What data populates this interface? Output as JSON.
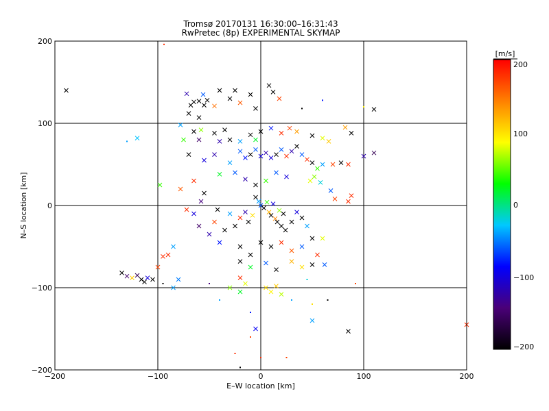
{
  "chart_data": {
    "type": "scatter",
    "title": "Tromsø 20170131 16:30:00–16:31:43",
    "subtitle": "RwPretec (8p) EXPERIMENTAL SKYMAP",
    "xlabel": "E–W location [km]",
    "ylabel": "N–S location [km]",
    "xlim": [
      -200,
      200
    ],
    "ylim": [
      -200,
      200
    ],
    "xticks": [
      "−200",
      "−100",
      "0",
      "100",
      "200"
    ],
    "yticks": [
      "−200",
      "−100",
      "0",
      "100",
      "200"
    ],
    "grid": true,
    "colorbar": {
      "label": "[m/s]",
      "range": [
        -200,
        200
      ],
      "ticks": [
        "200",
        "100",
        "0",
        "−100",
        "−200"
      ],
      "colormap": [
        "#000000",
        "#4a0078",
        "#0000ff",
        "#00c8ff",
        "#00ff00",
        "#ffff00",
        "#ff8000",
        "#ff0000"
      ]
    },
    "points": [
      {
        "x": -189,
        "y": 140,
        "v": -200,
        "m": "x"
      },
      {
        "x": -94,
        "y": 196,
        "v": 180,
        "m": "d"
      },
      {
        "x": -72,
        "y": 136,
        "v": -120,
        "m": "x"
      },
      {
        "x": -68,
        "y": 122,
        "v": -200,
        "m": "x"
      },
      {
        "x": -65,
        "y": 126,
        "v": -200,
        "m": "x"
      },
      {
        "x": -60,
        "y": 127,
        "v": -200,
        "m": "x"
      },
      {
        "x": -55,
        "y": 122,
        "v": -200,
        "m": "x"
      },
      {
        "x": -52,
        "y": 128,
        "v": -200,
        "m": "x"
      },
      {
        "x": -70,
        "y": 112,
        "v": -200,
        "m": "x"
      },
      {
        "x": -60,
        "y": 107,
        "v": -200,
        "m": "x"
      },
      {
        "x": -56,
        "y": 135,
        "v": -60,
        "m": "x"
      },
      {
        "x": -45,
        "y": 121,
        "v": 150,
        "m": "x"
      },
      {
        "x": -40,
        "y": 140,
        "v": -200,
        "m": "x"
      },
      {
        "x": -30,
        "y": 130,
        "v": -200,
        "m": "x"
      },
      {
        "x": -25,
        "y": 140,
        "v": -200,
        "m": "x"
      },
      {
        "x": -20,
        "y": 125,
        "v": 160,
        "m": "x"
      },
      {
        "x": -10,
        "y": 135,
        "v": -200,
        "m": "x"
      },
      {
        "x": -5,
        "y": 118,
        "v": -200,
        "m": "x"
      },
      {
        "x": 8,
        "y": 146,
        "v": -200,
        "m": "x"
      },
      {
        "x": 12,
        "y": 138,
        "v": -200,
        "m": "x"
      },
      {
        "x": 18,
        "y": 130,
        "v": 170,
        "m": "x"
      },
      {
        "x": 40,
        "y": 118,
        "v": -200,
        "m": "d"
      },
      {
        "x": 60,
        "y": 128,
        "v": -80,
        "m": "d"
      },
      {
        "x": 110,
        "y": 117,
        "v": -200,
        "m": "x"
      },
      {
        "x": 100,
        "y": 120,
        "v": 90,
        "m": "d"
      },
      {
        "x": -120,
        "y": 82,
        "v": -30,
        "m": "x"
      },
      {
        "x": -130,
        "y": 78,
        "v": -40,
        "m": "d"
      },
      {
        "x": -78,
        "y": 98,
        "v": -40,
        "m": "x"
      },
      {
        "x": -65,
        "y": 90,
        "v": -200,
        "m": "x"
      },
      {
        "x": -60,
        "y": 80,
        "v": -150,
        "m": "x"
      },
      {
        "x": -58,
        "y": 92,
        "v": 60,
        "m": "x"
      },
      {
        "x": -75,
        "y": 80,
        "v": 40,
        "m": "x"
      },
      {
        "x": -45,
        "y": 88,
        "v": -200,
        "m": "x"
      },
      {
        "x": -40,
        "y": 78,
        "v": -120,
        "m": "x"
      },
      {
        "x": -35,
        "y": 92,
        "v": -200,
        "m": "x"
      },
      {
        "x": -30,
        "y": 80,
        "v": -200,
        "m": "x"
      },
      {
        "x": -20,
        "y": 78,
        "v": -40,
        "m": "x"
      },
      {
        "x": -10,
        "y": 86,
        "v": -200,
        "m": "x"
      },
      {
        "x": -5,
        "y": 80,
        "v": 20,
        "m": "x"
      },
      {
        "x": 0,
        "y": 90,
        "v": -200,
        "m": "x"
      },
      {
        "x": 10,
        "y": 94,
        "v": -80,
        "m": "x"
      },
      {
        "x": 20,
        "y": 88,
        "v": 180,
        "m": "x"
      },
      {
        "x": 28,
        "y": 94,
        "v": 170,
        "m": "x"
      },
      {
        "x": 35,
        "y": 90,
        "v": 130,
        "m": "x"
      },
      {
        "x": 50,
        "y": 85,
        "v": -200,
        "m": "x"
      },
      {
        "x": 60,
        "y": 82,
        "v": 80,
        "m": "x"
      },
      {
        "x": 66,
        "y": 78,
        "v": 110,
        "m": "x"
      },
      {
        "x": 82,
        "y": 95,
        "v": 130,
        "m": "x"
      },
      {
        "x": 88,
        "y": 88,
        "v": -200,
        "m": "x"
      },
      {
        "x": -20,
        "y": 66,
        "v": -60,
        "m": "x"
      },
      {
        "x": -15,
        "y": 58,
        "v": -80,
        "m": "x"
      },
      {
        "x": -10,
        "y": 62,
        "v": -200,
        "m": "x"
      },
      {
        "x": -5,
        "y": 68,
        "v": -60,
        "m": "x"
      },
      {
        "x": 0,
        "y": 60,
        "v": -100,
        "m": "x"
      },
      {
        "x": 5,
        "y": 64,
        "v": -120,
        "m": "x"
      },
      {
        "x": 10,
        "y": 58,
        "v": -100,
        "m": "x"
      },
      {
        "x": 15,
        "y": 62,
        "v": -200,
        "m": "x"
      },
      {
        "x": 20,
        "y": 68,
        "v": -60,
        "m": "x"
      },
      {
        "x": 25,
        "y": 60,
        "v": 180,
        "m": "x"
      },
      {
        "x": 30,
        "y": 66,
        "v": -120,
        "m": "x"
      },
      {
        "x": 35,
        "y": 72,
        "v": -200,
        "m": "x"
      },
      {
        "x": 40,
        "y": 62,
        "v": -60,
        "m": "x"
      },
      {
        "x": 45,
        "y": 56,
        "v": 180,
        "m": "x"
      },
      {
        "x": 50,
        "y": 52,
        "v": -200,
        "m": "x"
      },
      {
        "x": 55,
        "y": 45,
        "v": 40,
        "m": "x"
      },
      {
        "x": 60,
        "y": 50,
        "v": -40,
        "m": "x"
      },
      {
        "x": 70,
        "y": 50,
        "v": 170,
        "m": "x"
      },
      {
        "x": 78,
        "y": 52,
        "v": -200,
        "m": "x"
      },
      {
        "x": 85,
        "y": 50,
        "v": 180,
        "m": "x"
      },
      {
        "x": 100,
        "y": 60,
        "v": -120,
        "m": "x"
      },
      {
        "x": 110,
        "y": 64,
        "v": -160,
        "m": "x"
      },
      {
        "x": -70,
        "y": 62,
        "v": -200,
        "m": "x"
      },
      {
        "x": -55,
        "y": 55,
        "v": -100,
        "m": "x"
      },
      {
        "x": -45,
        "y": 62,
        "v": -120,
        "m": "x"
      },
      {
        "x": -30,
        "y": 52,
        "v": -40,
        "m": "x"
      },
      {
        "x": -40,
        "y": 38,
        "v": 20,
        "m": "x"
      },
      {
        "x": -25,
        "y": 40,
        "v": -60,
        "m": "x"
      },
      {
        "x": -15,
        "y": 32,
        "v": -120,
        "m": "x"
      },
      {
        "x": -5,
        "y": 25,
        "v": -200,
        "m": "x"
      },
      {
        "x": 5,
        "y": 30,
        "v": 40,
        "m": "x"
      },
      {
        "x": 15,
        "y": 40,
        "v": -60,
        "m": "x"
      },
      {
        "x": 25,
        "y": 35,
        "v": -100,
        "m": "x"
      },
      {
        "x": -65,
        "y": 30,
        "v": 180,
        "m": "x"
      },
      {
        "x": -78,
        "y": 20,
        "v": 160,
        "m": "x"
      },
      {
        "x": -98,
        "y": 25,
        "v": 40,
        "m": "x"
      },
      {
        "x": -55,
        "y": 15,
        "v": -200,
        "m": "x"
      },
      {
        "x": 52,
        "y": 35,
        "v": 60,
        "m": "x"
      },
      {
        "x": 48,
        "y": 30,
        "v": 80,
        "m": "x"
      },
      {
        "x": 58,
        "y": 28,
        "v": -20,
        "m": "x"
      },
      {
        "x": 68,
        "y": 18,
        "v": -60,
        "m": "x"
      },
      {
        "x": 72,
        "y": 8,
        "v": 170,
        "m": "x"
      },
      {
        "x": 85,
        "y": 5,
        "v": 180,
        "m": "x"
      },
      {
        "x": 88,
        "y": 12,
        "v": 180,
        "m": "x"
      },
      {
        "x": -5,
        "y": 10,
        "v": -200,
        "m": "x"
      },
      {
        "x": -2,
        "y": 5,
        "v": -40,
        "m": "x"
      },
      {
        "x": 0,
        "y": 0,
        "v": -60,
        "m": "x"
      },
      {
        "x": 3,
        "y": -3,
        "v": -200,
        "m": "x"
      },
      {
        "x": 6,
        "y": 4,
        "v": 40,
        "m": "x"
      },
      {
        "x": 8,
        "y": -8,
        "v": 120,
        "m": "x"
      },
      {
        "x": 10,
        "y": -12,
        "v": -200,
        "m": "x"
      },
      {
        "x": 12,
        "y": 2,
        "v": -100,
        "m": "x"
      },
      {
        "x": 14,
        "y": -16,
        "v": 140,
        "m": "x"
      },
      {
        "x": 16,
        "y": -20,
        "v": -200,
        "m": "x"
      },
      {
        "x": 18,
        "y": -6,
        "v": 60,
        "m": "x"
      },
      {
        "x": 20,
        "y": -25,
        "v": -200,
        "m": "x"
      },
      {
        "x": 22,
        "y": -10,
        "v": -200,
        "m": "x"
      },
      {
        "x": 24,
        "y": -30,
        "v": -200,
        "m": "x"
      },
      {
        "x": -8,
        "y": -12,
        "v": 100,
        "m": "x"
      },
      {
        "x": -12,
        "y": -20,
        "v": -200,
        "m": "x"
      },
      {
        "x": -15,
        "y": -8,
        "v": -120,
        "m": "x"
      },
      {
        "x": -20,
        "y": -15,
        "v": 180,
        "m": "x"
      },
      {
        "x": -25,
        "y": -25,
        "v": -200,
        "m": "x"
      },
      {
        "x": -30,
        "y": -10,
        "v": -40,
        "m": "x"
      },
      {
        "x": -35,
        "y": -30,
        "v": -200,
        "m": "x"
      },
      {
        "x": -45,
        "y": -20,
        "v": 170,
        "m": "x"
      },
      {
        "x": -50,
        "y": -35,
        "v": -120,
        "m": "x"
      },
      {
        "x": -60,
        "y": -25,
        "v": -150,
        "m": "x"
      },
      {
        "x": -65,
        "y": -10,
        "v": -100,
        "m": "x"
      },
      {
        "x": -58,
        "y": 5,
        "v": -140,
        "m": "x"
      },
      {
        "x": -72,
        "y": -5,
        "v": 180,
        "m": "x"
      },
      {
        "x": -42,
        "y": -5,
        "v": -200,
        "m": "x"
      },
      {
        "x": 30,
        "y": -20,
        "v": -200,
        "m": "x"
      },
      {
        "x": 35,
        "y": -8,
        "v": -100,
        "m": "x"
      },
      {
        "x": 40,
        "y": -15,
        "v": -200,
        "m": "x"
      },
      {
        "x": 45,
        "y": -25,
        "v": -40,
        "m": "x"
      },
      {
        "x": 50,
        "y": -40,
        "v": -200,
        "m": "x"
      },
      {
        "x": -40,
        "y": -45,
        "v": -80,
        "m": "x"
      },
      {
        "x": -20,
        "y": -50,
        "v": -200,
        "m": "x"
      },
      {
        "x": -10,
        "y": -60,
        "v": -200,
        "m": "x"
      },
      {
        "x": 0,
        "y": -45,
        "v": -200,
        "m": "x"
      },
      {
        "x": 10,
        "y": -50,
        "v": -200,
        "m": "x"
      },
      {
        "x": 20,
        "y": -45,
        "v": 180,
        "m": "x"
      },
      {
        "x": 30,
        "y": -55,
        "v": 160,
        "m": "x"
      },
      {
        "x": 40,
        "y": -50,
        "v": -60,
        "m": "x"
      },
      {
        "x": 55,
        "y": -60,
        "v": 180,
        "m": "x"
      },
      {
        "x": 60,
        "y": -40,
        "v": 80,
        "m": "x"
      },
      {
        "x": -85,
        "y": -50,
        "v": -40,
        "m": "x"
      },
      {
        "x": -90,
        "y": -60,
        "v": 180,
        "m": "x"
      },
      {
        "x": -20,
        "y": -68,
        "v": -200,
        "m": "x"
      },
      {
        "x": -10,
        "y": -75,
        "v": 20,
        "m": "x"
      },
      {
        "x": 5,
        "y": -70,
        "v": -60,
        "m": "x"
      },
      {
        "x": 15,
        "y": -78,
        "v": -200,
        "m": "x"
      },
      {
        "x": 30,
        "y": -68,
        "v": 120,
        "m": "x"
      },
      {
        "x": 40,
        "y": -75,
        "v": 100,
        "m": "x"
      },
      {
        "x": 50,
        "y": -72,
        "v": -200,
        "m": "x"
      },
      {
        "x": 62,
        "y": -72,
        "v": -60,
        "m": "x"
      },
      {
        "x": -20,
        "y": -88,
        "v": 180,
        "m": "x"
      },
      {
        "x": -15,
        "y": -95,
        "v": 80,
        "m": "x"
      },
      {
        "x": -135,
        "y": -82,
        "v": -200,
        "m": "x"
      },
      {
        "x": -130,
        "y": -86,
        "v": -150,
        "m": "x"
      },
      {
        "x": -125,
        "y": -88,
        "v": 110,
        "m": "x"
      },
      {
        "x": -120,
        "y": -85,
        "v": -160,
        "m": "x"
      },
      {
        "x": -116,
        "y": -90,
        "v": -200,
        "m": "x"
      },
      {
        "x": -113,
        "y": -93,
        "v": -200,
        "m": "x"
      },
      {
        "x": -110,
        "y": -88,
        "v": -100,
        "m": "x"
      },
      {
        "x": -105,
        "y": -90,
        "v": -200,
        "m": "x"
      },
      {
        "x": -100,
        "y": -75,
        "v": 170,
        "m": "x"
      },
      {
        "x": -95,
        "y": -62,
        "v": 180,
        "m": "x"
      },
      {
        "x": -85,
        "y": -100,
        "v": -40,
        "m": "x"
      },
      {
        "x": -80,
        "y": -90,
        "v": -50,
        "m": "x"
      },
      {
        "x": -30,
        "y": -100,
        "v": 60,
        "m": "x"
      },
      {
        "x": -20,
        "y": -105,
        "v": 20,
        "m": "x"
      },
      {
        "x": 5,
        "y": -100,
        "v": 100,
        "m": "x"
      },
      {
        "x": 10,
        "y": -105,
        "v": 90,
        "m": "x"
      },
      {
        "x": 15,
        "y": -98,
        "v": 110,
        "m": "x"
      },
      {
        "x": 20,
        "y": -108,
        "v": 70,
        "m": "x"
      },
      {
        "x": 50,
        "y": -140,
        "v": -40,
        "m": "x"
      },
      {
        "x": -5,
        "y": -150,
        "v": -90,
        "m": "x"
      },
      {
        "x": 85,
        "y": -153,
        "v": -200,
        "m": "x"
      },
      {
        "x": 200,
        "y": -145,
        "v": 180,
        "m": "x"
      },
      {
        "x": -10,
        "y": -160,
        "v": 170,
        "m": "d"
      },
      {
        "x": -25,
        "y": -180,
        "v": 180,
        "m": "d"
      },
      {
        "x": -20,
        "y": -197,
        "v": -200,
        "m": "d"
      },
      {
        "x": 0,
        "y": -185,
        "v": 180,
        "m": "d"
      },
      {
        "x": 25,
        "y": -185,
        "v": 170,
        "m": "d"
      },
      {
        "x": 50,
        "y": -120,
        "v": 100,
        "m": "d"
      },
      {
        "x": 65,
        "y": -115,
        "v": -200,
        "m": "d"
      },
      {
        "x": 92,
        "y": -95,
        "v": 170,
        "m": "d"
      },
      {
        "x": -95,
        "y": -95,
        "v": -200,
        "m": "d"
      },
      {
        "x": -50,
        "y": -95,
        "v": -140,
        "m": "d"
      },
      {
        "x": -40,
        "y": -115,
        "v": -40,
        "m": "d"
      },
      {
        "x": -10,
        "y": -130,
        "v": -80,
        "m": "d"
      },
      {
        "x": 30,
        "y": -115,
        "v": -40,
        "m": "d"
      },
      {
        "x": 45,
        "y": -90,
        "v": -20,
        "m": "d"
      }
    ]
  }
}
